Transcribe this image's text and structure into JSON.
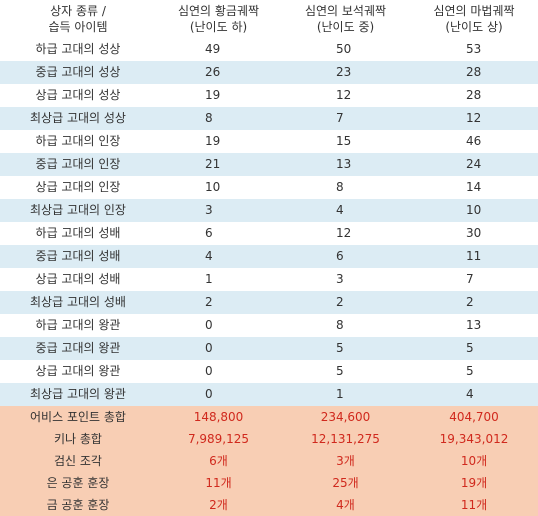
{
  "header": {
    "col0": [
      "상자 종류 /",
      "습득 아이템"
    ],
    "col1": [
      "심연의 황금궤짝",
      "(난이도 하)"
    ],
    "col2": [
      "심연의 보석궤짝",
      "(난이도 중)"
    ],
    "col3": [
      "심연의 마법궤짝",
      "(난이도 상)"
    ]
  },
  "rows": [
    {
      "name": "하급 고대의 성상",
      "v1": "49",
      "v2": "50",
      "v3": "53"
    },
    {
      "name": "중급 고대의 성상",
      "v1": "26",
      "v2": "23",
      "v3": "28"
    },
    {
      "name": "상급 고대의 성상",
      "v1": "19",
      "v2": "12",
      "v3": "28"
    },
    {
      "name": "최상급 고대의 성상",
      "v1": "8",
      "v2": "7",
      "v3": "12"
    },
    {
      "name": "하급 고대의 인장",
      "v1": "19",
      "v2": "15",
      "v3": "46"
    },
    {
      "name": "중급 고대의 인장",
      "v1": "21",
      "v2": "13",
      "v3": "24"
    },
    {
      "name": "상급 고대의 인장",
      "v1": "10",
      "v2": "8",
      "v3": "14"
    },
    {
      "name": "최상급 고대의 인장",
      "v1": "3",
      "v2": "4",
      "v3": "10"
    },
    {
      "name": "하급 고대의 성배",
      "v1": "6",
      "v2": "12",
      "v3": "30"
    },
    {
      "name": "중급 고대의 성배",
      "v1": "4",
      "v2": "6",
      "v3": "11"
    },
    {
      "name": "상급 고대의 성배",
      "v1": "1",
      "v2": "3",
      "v3": "7"
    },
    {
      "name": "최상급 고대의 성배",
      "v1": "2",
      "v2": "2",
      "v3": "2"
    },
    {
      "name": "하급 고대의 왕관",
      "v1": "0",
      "v2": "8",
      "v3": "13"
    },
    {
      "name": "중급 고대의 왕관",
      "v1": "0",
      "v2": "5",
      "v3": "5"
    },
    {
      "name": "상급 고대의 왕관",
      "v1": "0",
      "v2": "5",
      "v3": "5"
    },
    {
      "name": "최상급 고대의 왕관",
      "v1": "0",
      "v2": "1",
      "v3": "4"
    }
  ],
  "summary": [
    {
      "name": "어비스 포인트 총합",
      "v1": "148,800",
      "v2": "234,600",
      "v3": "404,700"
    },
    {
      "name": "키나 총합",
      "v1": "7,989,125",
      "v2": "12,131,275",
      "v3": "19,343,012"
    },
    {
      "name": "검신 조각",
      "v1": "6개",
      "v2": "3개",
      "v3": "10개"
    },
    {
      "name": "은 공훈 훈장",
      "v1": "11개",
      "v2": "25개",
      "v3": "19개"
    },
    {
      "name": "금 공훈 훈장",
      "v1": "2개",
      "v2": "4개",
      "v3": "11개"
    }
  ],
  "colors": {
    "row_stripe": "#dcecf4",
    "summary_bg": "#f8ceb4",
    "summary_value": "#d0291d"
  }
}
